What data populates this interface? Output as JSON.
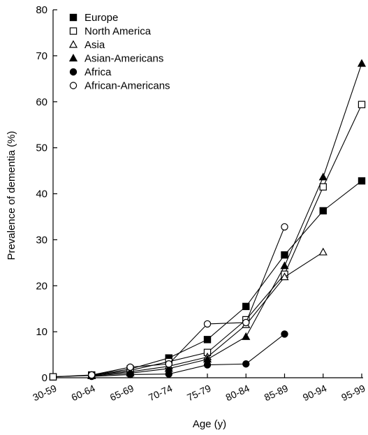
{
  "chart_data": {
    "type": "line",
    "xlabel": "Age (y)",
    "ylabel": "Prevalence of dementia (%)",
    "ylim": [
      0,
      80
    ],
    "yticks": [
      0,
      10,
      20,
      30,
      40,
      50,
      60,
      70,
      80
    ],
    "categories": [
      "30-59",
      "60-64",
      "65-69",
      "70-74",
      "75-79",
      "80-84",
      "85-89",
      "90-94",
      "95-99"
    ],
    "grid": false,
    "legend_position": "top-left",
    "series": [
      {
        "name": "Europe",
        "marker": "square-filled",
        "values": [
          0.2,
          0.6,
          1.9,
          4.3,
          8.3,
          15.5,
          26.7,
          36.3,
          42.8
        ]
      },
      {
        "name": "North America",
        "marker": "square-open",
        "values": [
          0.2,
          0.5,
          1.6,
          3.5,
          5.5,
          12.6,
          22.5,
          41.5,
          59.4
        ]
      },
      {
        "name": "Asia",
        "marker": "triangle-open",
        "values": [
          null,
          0.5,
          1.3,
          2.5,
          4.5,
          11.5,
          21.9,
          27.3,
          null
        ]
      },
      {
        "name": "Asian-Americans",
        "marker": "triangle-filled",
        "values": [
          null,
          0.4,
          1.0,
          2.0,
          4.0,
          8.9,
          24.3,
          43.6,
          68.3
        ]
      },
      {
        "name": "Africa",
        "marker": "circle-filled",
        "values": [
          null,
          0.3,
          0.7,
          0.8,
          2.8,
          3.0,
          9.5,
          null,
          null
        ]
      },
      {
        "name": "African-Americans",
        "marker": "circle-open",
        "values": [
          null,
          0.6,
          2.3,
          3.0,
          11.7,
          12.0,
          32.8,
          null,
          null
        ]
      }
    ]
  }
}
